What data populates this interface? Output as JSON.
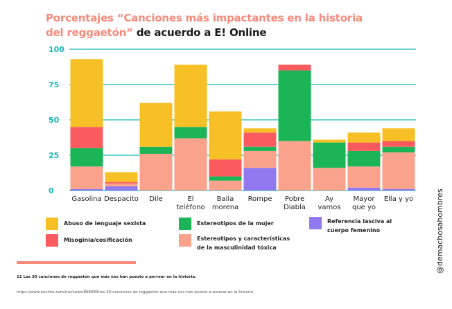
{
  "title": {
    "line1": "Porcentajes “Canciones más impactantes en la historia",
    "line2_accent": "del reggaetón”",
    "line2_rest": " de acuerdo a E! Online"
  },
  "colors": {
    "abuso": "#f6c026",
    "misoginia": "#fb5b5e",
    "estereotipos_mujer": "#1bb456",
    "estereotipos_masculinidad": "#fba28c",
    "referencia_lasciva": "#9178ee",
    "grid": "#19b7b7",
    "accent": "#f7897a"
  },
  "chart_data": {
    "type": "bar",
    "stacked": true,
    "categories": [
      "Gasolina",
      "Despacito",
      "Dile",
      "El\nteléfono",
      "Baila\nmorena",
      "Rompe",
      "Pobre\nDiabla",
      "Ay\nvamos",
      "Mayor\nque yo",
      "Ella y yo"
    ],
    "yticks": [
      0,
      25,
      50,
      75,
      100
    ],
    "ylim": [
      0,
      100
    ],
    "grid": true,
    "series": [
      {
        "name": "Referencia lasciva al cuerpo femenino",
        "color": "#9178ee",
        "values": [
          1,
          3,
          0,
          0,
          0,
          16,
          0,
          0,
          2,
          1
        ]
      },
      {
        "name": "Estereotipos y características de la masculinidad tóxica",
        "color": "#fba28c",
        "values": [
          16,
          2,
          26,
          37,
          7,
          12,
          35,
          16,
          15,
          26
        ]
      },
      {
        "name": "Estereotipos de la mujer",
        "color": "#1bb456",
        "values": [
          13,
          0,
          5,
          8,
          3,
          3,
          50,
          18,
          11,
          4
        ]
      },
      {
        "name": "Misoginia/cosificación",
        "color": "#fb5b5e",
        "values": [
          15,
          1,
          0,
          0,
          12,
          10,
          4,
          0,
          6,
          4
        ]
      },
      {
        "name": "Abuso de lenguaje sexista",
        "color": "#f6c026",
        "values": [
          48,
          7,
          31,
          44,
          34,
          3,
          0,
          2,
          7,
          9
        ]
      }
    ]
  },
  "legend": {
    "abuso": "Abuso de lenguaje sexista",
    "misoginia": "Misoginia/cosificación",
    "mujer": "Estereotipos de la mujer",
    "masculinidad": "Estereotipos y características\nde la masculinidad tóxica",
    "lasciva": "Referencia lasciva al\ncuerpo femenino"
  },
  "footnote": "11  Las 30 canciones de reggaetón que más nos han puesto a perrear en la historia.",
  "source": "https://www.eonline.com/mx/news/868089/las-30-canciones-de-reggaeton-que-mas-nos-han-puesto-a-perrear-en-la-historia",
  "handle": "@demachosahombres"
}
